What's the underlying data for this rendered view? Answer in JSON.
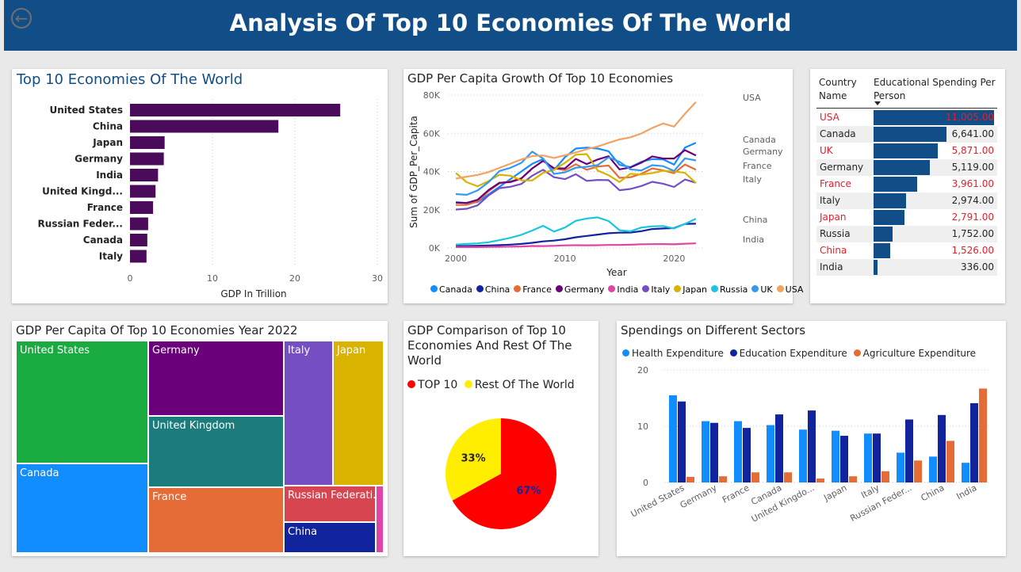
{
  "header": {
    "title": "Analysis Of Top 10 Economies Of The World"
  },
  "colors": {
    "banner": "#114e87",
    "bar_purple": "#4a0b5b",
    "table_bar": "#114e87",
    "red_text": "#e0202b"
  },
  "gdp_bar": {
    "title": "Top 10 Economies Of The World",
    "xlabel": "GDP In Trillion",
    "ticks": [
      "0",
      "10",
      "20",
      "30"
    ]
  },
  "line_panel": {
    "title": "GDP Per Capita Growth Of Top 10 Economies",
    "ylabel": "Sum of GDP_Per_Capita",
    "xlabel": "Year",
    "yticks": [
      "0K",
      "20K",
      "40K",
      "60K",
      "80K"
    ],
    "xticks": [
      "2000",
      "2010",
      "2020"
    ],
    "end_labels": [
      "USA",
      "Canada",
      "Germany",
      "France",
      "Italy",
      "China",
      "India"
    ],
    "legend": [
      "Canada",
      "China",
      "France",
      "Germany",
      "India",
      "Italy",
      "Japan",
      "Russia",
      "UK",
      "USA"
    ]
  },
  "edu_table": {
    "col1": "Country Name",
    "col2": "Educational Spending Per Person",
    "rows": [
      {
        "country": "USA",
        "value": "11,005.00",
        "red": true
      },
      {
        "country": "Canada",
        "value": "6,641.00",
        "red": false
      },
      {
        "country": "UK",
        "value": "5,871.00",
        "red": true
      },
      {
        "country": "Germany",
        "value": "5,119.00",
        "red": false
      },
      {
        "country": "France",
        "value": "3,961.00",
        "red": true
      },
      {
        "country": "Italy",
        "value": "2,974.00",
        "red": false
      },
      {
        "country": "Japan",
        "value": "2,791.00",
        "red": true
      },
      {
        "country": "Russia",
        "value": "1,752.00",
        "red": false
      },
      {
        "country": "China",
        "value": "1,526.00",
        "red": true
      },
      {
        "country": "India",
        "value": "336.00",
        "red": false
      }
    ]
  },
  "treemap": {
    "title": "GDP Per Capita Of Top 10 Economies Year 2022",
    "cells": [
      {
        "label": "United States",
        "color": "#1aab40"
      },
      {
        "label": "Germany",
        "color": "#6b007b"
      },
      {
        "label": "Italy",
        "color": "#744ec2"
      },
      {
        "label": "Japan",
        "color": "#d9b300"
      },
      {
        "label": "United Kingdom",
        "color": "#1c7b7b"
      },
      {
        "label": "Canada",
        "color": "#118dff"
      },
      {
        "label": "France",
        "color": "#e66c37"
      },
      {
        "label": "Russian Federati...",
        "color": "#d64550"
      },
      {
        "label": "China",
        "color": "#12239e"
      },
      {
        "label": "",
        "color": "#e044a7"
      }
    ]
  },
  "pie_panel": {
    "title": "GDP Comparison of Top 10 Economies And Rest Of The World",
    "legend": [
      {
        "label": "TOP 10",
        "color": "#ff0000"
      },
      {
        "label": "Rest Of The World",
        "color": "#ffee00"
      }
    ],
    "labels": [
      "67%",
      "33%"
    ]
  },
  "sectors": {
    "title": "Spendings on Different Sectors",
    "legend": [
      {
        "label": "Health Expenditure",
        "color": "#118dff"
      },
      {
        "label": "Education Expenditure",
        "color": "#12239e"
      },
      {
        "label": "Agriculture Expenditure",
        "color": "#e66c37"
      }
    ],
    "yticks": [
      "0",
      "10",
      "20"
    ]
  },
  "chart_data": [
    {
      "type": "bar",
      "orientation": "horizontal",
      "title": "Top 10 Economies Of The World",
      "xlabel": "GDP In Trillion",
      "categories": [
        "United States",
        "China",
        "Japan",
        "Germany",
        "India",
        "United Kingd...",
        "France",
        "Russian Feder...",
        "Canada",
        "Italy"
      ],
      "values": [
        25.5,
        18.0,
        4.2,
        4.1,
        3.4,
        3.1,
        2.8,
        2.2,
        2.1,
        2.0
      ],
      "xlim": [
        0,
        30
      ]
    },
    {
      "type": "line",
      "title": "GDP Per Capita Growth Of Top 10 Economies",
      "xlabel": "Year",
      "ylabel": "Sum of GDP_Per_Capita",
      "x": [
        2000,
        2001,
        2002,
        2003,
        2004,
        2005,
        2006,
        2007,
        2008,
        2009,
        2010,
        2011,
        2012,
        2013,
        2014,
        2015,
        2016,
        2017,
        2018,
        2019,
        2020,
        2021,
        2022
      ],
      "ylim": [
        0,
        80000
      ],
      "series": [
        {
          "name": "Canada",
          "color": "#118dff",
          "values": [
            24000,
            23500,
            24000,
            28000,
            32000,
            36000,
            40000,
            44000,
            46500,
            40800,
            47500,
            52000,
            52500,
            52000,
            50600,
            43500,
            42300,
            45100,
            46500,
            46300,
            43600,
            52500,
            55000
          ]
        },
        {
          "name": "China",
          "color": "#12239e",
          "values": [
            950,
            1050,
            1150,
            1300,
            1500,
            1750,
            2100,
            2700,
            3450,
            3850,
            4550,
            5600,
            6300,
            7000,
            7700,
            8000,
            8100,
            8800,
            9900,
            10200,
            10400,
            12600,
            12700
          ]
        },
        {
          "name": "France",
          "color": "#e66c37",
          "values": [
            22500,
            22600,
            24300,
            29700,
            33800,
            34800,
            36500,
            41600,
            45500,
            41700,
            40700,
            43800,
            40900,
            42600,
            43100,
            36700,
            37000,
            38800,
            41600,
            40600,
            39100,
            43700,
            40900
          ]
        },
        {
          "name": "Germany",
          "color": "#6b007b",
          "values": [
            23700,
            23600,
            25200,
            30300,
            34100,
            34500,
            36300,
            41600,
            45600,
            41700,
            41600,
            46600,
            43900,
            46300,
            48000,
            41100,
            42100,
            44600,
            47900,
            46800,
            46800,
            51200,
            48400
          ]
        },
        {
          "name": "India",
          "color": "#e044a7",
          "values": [
            440,
            450,
            470,
            540,
            620,
            710,
            800,
            1020,
            1000,
            1100,
            1350,
            1450,
            1430,
            1440,
            1560,
            1590,
            1710,
            1960,
            2000,
            2050,
            1910,
            2250,
            2390
          ]
        },
        {
          "name": "Italy",
          "color": "#744ec2",
          "values": [
            20100,
            20500,
            22300,
            27500,
            31300,
            32000,
            33500,
            37800,
            40900,
            37000,
            36000,
            38600,
            35100,
            35600,
            35500,
            30200,
            30900,
            32400,
            34600,
            33600,
            31900,
            35800,
            34100
          ]
        },
        {
          "name": "Japan",
          "color": "#d9b300",
          "values": [
            39200,
            34400,
            32300,
            35000,
            38300,
            37800,
            35400,
            35300,
            39300,
            40900,
            44500,
            48800,
            49100,
            40500,
            38100,
            34500,
            38800,
            38400,
            39200,
            40400,
            40100,
            39300,
            34000
          ]
        },
        {
          "name": "Russia",
          "color": "#1ac6dd",
          "values": [
            1800,
            2100,
            2400,
            3000,
            4100,
            5300,
            6900,
            9100,
            11600,
            8600,
            10700,
            14200,
            15400,
            16000,
            14100,
            9300,
            8700,
            10700,
            11300,
            11500,
            10200,
            12600,
            15300
          ]
        },
        {
          "name": "UK",
          "color": "#3599f0",
          "values": [
            28200,
            27800,
            30100,
            34400,
            40300,
            41900,
            44500,
            50400,
            46800,
            38700,
            39600,
            42000,
            42500,
            43400,
            47400,
            45100,
            41100,
            40600,
            43300,
            42800,
            40300,
            46900,
            45800
          ]
        },
        {
          "name": "USA",
          "color": "#f4a261",
          "values": [
            36300,
            37300,
            38200,
            39700,
            41900,
            44100,
            46300,
            48100,
            48400,
            47100,
            48500,
            50000,
            51700,
            53100,
            55000,
            56800,
            57900,
            59900,
            62800,
            65100,
            63500,
            70200,
            76400
          ]
        }
      ]
    },
    {
      "type": "bar",
      "orientation": "horizontal",
      "title": "Educational Spending Per Person",
      "categories": [
        "USA",
        "Canada",
        "UK",
        "Germany",
        "France",
        "Italy",
        "Japan",
        "Russia",
        "China",
        "India"
      ],
      "values": [
        11005,
        6641,
        5871,
        5119,
        3961,
        2974,
        2791,
        1752,
        1526,
        336
      ]
    },
    {
      "type": "treemap",
      "title": "GDP Per Capita Of Top 10 Economies Year 2022",
      "categories": [
        "United States",
        "Canada",
        "Germany",
        "United Kingdom",
        "France",
        "Italy",
        "Japan",
        "Russian Federation",
        "China",
        "India"
      ],
      "values": [
        76400,
        55000,
        48400,
        45800,
        40900,
        34100,
        34000,
        15300,
        12700,
        2400
      ]
    },
    {
      "type": "pie",
      "title": "GDP Comparison of Top 10 Economies And Rest Of The World",
      "categories": [
        "TOP 10",
        "Rest Of The World"
      ],
      "values": [
        67,
        33
      ]
    },
    {
      "type": "bar",
      "title": "Spendings on Different Sectors",
      "categories": [
        "United States",
        "Germany",
        "France",
        "Canada",
        "United Kingdo...",
        "Japan",
        "Italy",
        "Russian Feder...",
        "China",
        "India"
      ],
      "ylim": [
        0,
        20
      ],
      "series": [
        {
          "name": "Health Expenditure",
          "values": [
            15.5,
            10.9,
            10.9,
            10.2,
            9.4,
            9.2,
            8.7,
            5.3,
            4.6,
            3.5
          ]
        },
        {
          "name": "Education Expenditure",
          "values": [
            14.4,
            10.6,
            9.7,
            12.1,
            12.8,
            8.3,
            8.7,
            11.2,
            12.0,
            14.1
          ]
        },
        {
          "name": "Agriculture Expenditure",
          "values": [
            1.0,
            1.1,
            1.8,
            1.8,
            0.7,
            1.1,
            2.0,
            3.9,
            7.4,
            16.7
          ]
        }
      ]
    }
  ]
}
